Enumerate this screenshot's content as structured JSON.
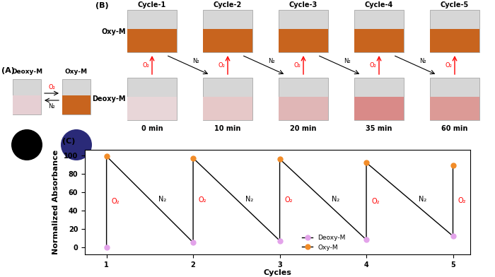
{
  "panels": {
    "A": {
      "label": "(A)",
      "states": [
        "Deoxy-M",
        "Oxy-M"
      ],
      "forward": "O₂",
      "reverse": "N₂"
    },
    "B": {
      "label": "(B)",
      "cycles": [
        "Cycle-1",
        "Cycle-2",
        "Cycle-3",
        "Cycle-4",
        "Cycle-5"
      ],
      "rows": [
        "Oxy-M",
        "Deoxy-M"
      ],
      "times": [
        "0 min",
        "10 min",
        "20 min",
        "35 min",
        "60 min"
      ],
      "forward": "O₂",
      "reverse": "N₂"
    }
  },
  "chart_data": {
    "type": "line",
    "label": "(C)",
    "x": [
      1,
      2,
      3,
      4,
      5
    ],
    "series": [
      {
        "name": "Deoxy-M",
        "color": "#e3a3ea",
        "marker": "o",
        "values": [
          0,
          5,
          7,
          8,
          12
        ]
      },
      {
        "name": "Oxy-M",
        "color": "#f28c28",
        "marker": "o",
        "values": [
          99,
          97,
          96,
          92,
          89
        ]
      }
    ],
    "xlabel": "Cycles",
    "ylabel": "Normalized Absorbance",
    "xlim": [
      0.75,
      5.2
    ],
    "ylim": [
      -8,
      106
    ],
    "xticks": [
      1,
      2,
      3,
      4,
      5
    ],
    "yticks": [
      0,
      20,
      40,
      60,
      80,
      100
    ],
    "legend": "lower center",
    "annotations": {
      "rise": "O₂",
      "fall": "N₂"
    }
  }
}
